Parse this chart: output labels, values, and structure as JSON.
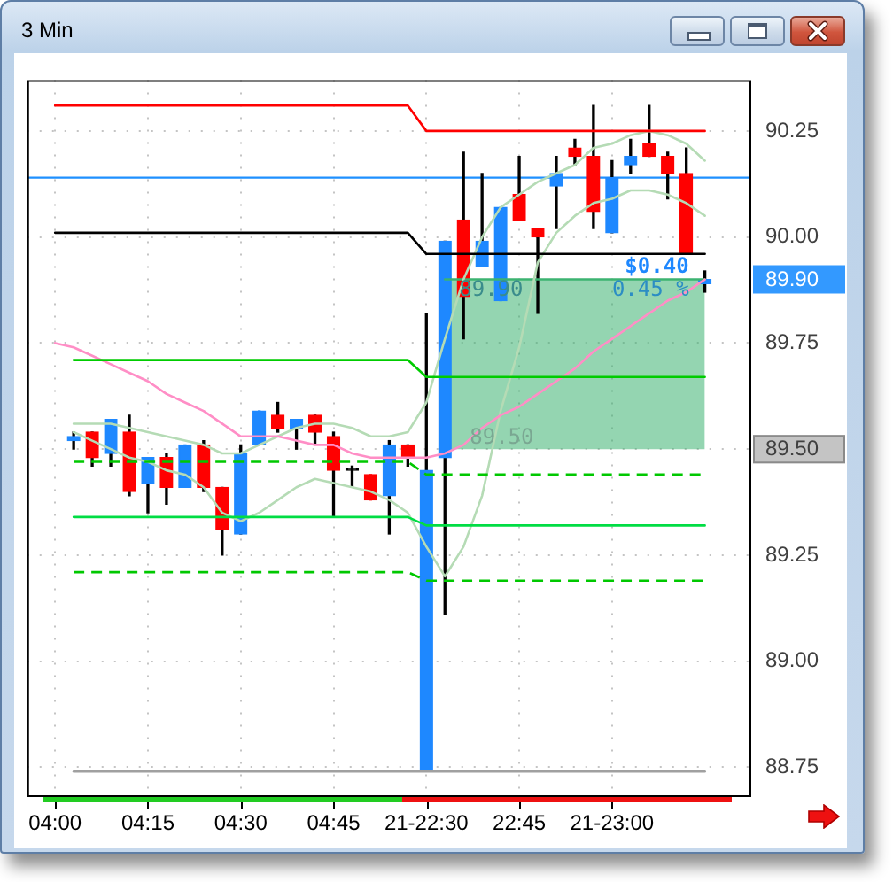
{
  "chart_data": {
    "type": "candlestick",
    "title": "3 Min",
    "categories": [
      "04:00",
      null,
      null,
      null,
      null,
      "04:15",
      null,
      null,
      null,
      null,
      "04:30",
      null,
      null,
      null,
      null,
      "04:45",
      null,
      null,
      null,
      null,
      "21-22:30",
      null,
      null,
      null,
      null,
      "22:45",
      null,
      null,
      null,
      null,
      "21-23:00",
      null,
      null,
      null,
      null,
      null
    ],
    "ohlc": [
      null,
      [
        89.52,
        89.54,
        89.5,
        89.53
      ],
      [
        89.54,
        89.54,
        89.46,
        89.48
      ],
      [
        89.49,
        89.57,
        89.46,
        89.57
      ],
      [
        89.54,
        89.58,
        89.39,
        89.4
      ],
      [
        89.42,
        89.48,
        89.35,
        89.48
      ],
      [
        89.48,
        89.49,
        89.37,
        89.41
      ],
      [
        89.41,
        89.51,
        89.41,
        89.51
      ],
      [
        89.51,
        89.52,
        89.4,
        89.41
      ],
      [
        89.41,
        89.41,
        89.25,
        89.31
      ],
      [
        89.3,
        89.51,
        89.3,
        89.49
      ],
      [
        89.51,
        89.59,
        89.51,
        89.59
      ],
      [
        89.58,
        89.61,
        89.54,
        89.55
      ],
      [
        89.55,
        89.57,
        89.5,
        89.57
      ],
      [
        89.58,
        89.58,
        89.51,
        89.54
      ],
      [
        89.53,
        89.54,
        89.34,
        89.45
      ],
      [
        89.45,
        89.46,
        89.41,
        89.45
      ],
      [
        89.44,
        89.44,
        89.38,
        89.38
      ],
      [
        89.39,
        89.52,
        89.3,
        89.51
      ],
      [
        89.51,
        89.51,
        89.46,
        89.48
      ],
      [
        88.74,
        89.82,
        88.74,
        89.45
      ],
      [
        89.48,
        89.99,
        89.11,
        89.99
      ],
      [
        90.04,
        90.2,
        89.76,
        89.86
      ],
      [
        89.93,
        90.15,
        89.93,
        89.99
      ],
      [
        89.85,
        90.07,
        89.85,
        90.07
      ],
      [
        90.1,
        90.19,
        90.04,
        90.04
      ],
      [
        90.02,
        90.02,
        89.82,
        90.0
      ],
      [
        90.12,
        90.19,
        90.02,
        90.15
      ],
      [
        90.21,
        90.23,
        90.17,
        90.19
      ],
      [
        90.19,
        90.31,
        90.02,
        90.06
      ],
      [
        90.01,
        90.18,
        90.01,
        90.14
      ],
      [
        90.17,
        90.23,
        90.15,
        90.19
      ],
      [
        90.22,
        90.31,
        90.19,
        90.19
      ],
      [
        90.19,
        90.2,
        90.09,
        90.15
      ],
      [
        90.15,
        90.21,
        89.96,
        89.96
      ],
      [
        89.89,
        89.92,
        89.87,
        89.9
      ]
    ],
    "colors": [
      null,
      "#1e88ff",
      "#ff0000",
      "#1e88ff",
      "#ff0000",
      "#1e88ff",
      "#ff0000",
      "#1e88ff",
      "#ff0000",
      "#ff0000",
      "#1e88ff",
      "#1e88ff",
      "#ff0000",
      "#1e88ff",
      "#ff0000",
      "#ff0000",
      "#000000",
      "#ff0000",
      "#1e88ff",
      "#ff0000",
      "#1e88ff",
      "#1e88ff",
      "#ff0000",
      "#1e88ff",
      "#1e88ff",
      "#ff0000",
      "#ff0000",
      "#1e88ff",
      "#ff0000",
      "#ff0000",
      "#1e88ff",
      "#1e88ff",
      "#ff0000",
      "#ff0000",
      "#ff0000",
      "#1e88ff"
    ],
    "series": [
      {
        "type": "line",
        "color": "#ff0000",
        "values": [
          90.31,
          90.31,
          90.31,
          90.31,
          90.31,
          90.31,
          90.31,
          90.31,
          90.31,
          90.31,
          90.31,
          90.31,
          90.31,
          90.31,
          90.31,
          90.31,
          90.31,
          90.31,
          90.31,
          90.31,
          90.25,
          90.25,
          90.25,
          90.25,
          90.25,
          90.25,
          90.25,
          90.25,
          90.25,
          90.25,
          90.25,
          90.25,
          90.25,
          90.25,
          90.25,
          90.25
        ]
      },
      {
        "type": "line",
        "color": "#000000",
        "values": [
          90.01,
          90.01,
          90.01,
          90.01,
          90.01,
          90.01,
          90.01,
          90.01,
          90.01,
          90.01,
          90.01,
          90.01,
          90.01,
          90.01,
          90.01,
          90.01,
          90.01,
          90.01,
          90.01,
          90.01,
          89.96,
          89.96,
          89.96,
          89.96,
          89.96,
          89.96,
          89.96,
          89.96,
          89.96,
          89.96,
          89.96,
          89.96,
          89.96,
          89.96,
          89.96,
          89.96
        ]
      },
      {
        "type": "line",
        "color": "#00cc00",
        "values": [
          null,
          89.71,
          89.71,
          89.71,
          89.71,
          89.71,
          89.71,
          89.71,
          89.71,
          89.71,
          89.71,
          89.71,
          89.71,
          89.71,
          89.71,
          89.71,
          89.71,
          89.71,
          89.71,
          89.71,
          89.67,
          89.67,
          89.67,
          89.67,
          89.67,
          89.67,
          89.67,
          89.67,
          89.67,
          89.67,
          89.67,
          89.67,
          89.67,
          89.67,
          89.67,
          89.67
        ]
      },
      {
        "type": "line",
        "color": "#00dd44",
        "values": [
          null,
          89.34,
          89.34,
          89.34,
          89.34,
          89.34,
          89.34,
          89.34,
          89.34,
          89.34,
          89.34,
          89.34,
          89.34,
          89.34,
          89.34,
          89.34,
          89.34,
          89.34,
          89.34,
          89.34,
          89.32,
          89.32,
          89.32,
          89.32,
          89.32,
          89.32,
          89.32,
          89.32,
          89.32,
          89.32,
          89.32,
          89.32,
          89.32,
          89.32,
          89.32,
          89.32
        ]
      },
      {
        "type": "line",
        "color": "#00c800",
        "line_style": "dashed",
        "values": [
          null,
          89.47,
          89.47,
          89.47,
          89.47,
          89.47,
          89.47,
          89.47,
          89.47,
          89.47,
          89.47,
          89.47,
          89.47,
          89.47,
          89.47,
          89.47,
          89.47,
          89.47,
          89.47,
          89.47,
          89.44,
          89.44,
          89.44,
          89.44,
          89.44,
          89.44,
          89.44,
          89.44,
          89.44,
          89.44,
          89.44,
          89.44,
          89.44,
          89.44,
          89.44,
          89.44
        ]
      },
      {
        "type": "line",
        "color": "#00c800",
        "line_style": "dashed",
        "values": [
          null,
          89.21,
          89.21,
          89.21,
          89.21,
          89.21,
          89.21,
          89.21,
          89.21,
          89.21,
          89.21,
          89.21,
          89.21,
          89.21,
          89.21,
          89.21,
          89.21,
          89.21,
          89.21,
          89.21,
          89.19,
          89.19,
          89.19,
          89.19,
          89.19,
          89.19,
          89.19,
          89.19,
          89.19,
          89.19,
          89.19,
          89.19,
          89.19,
          89.19,
          89.19,
          89.19
        ]
      },
      {
        "type": "line",
        "color": "#a0a0a0",
        "values": [
          null,
          88.74,
          88.74,
          88.74,
          88.74,
          88.74,
          88.74,
          88.74,
          88.74,
          88.74,
          88.74,
          88.74,
          88.74,
          88.74,
          88.74,
          88.74,
          88.74,
          88.74,
          88.74,
          88.74,
          88.74,
          88.74,
          88.74,
          88.74,
          88.74,
          88.74,
          88.74,
          88.74,
          88.74,
          88.74,
          88.74,
          88.74,
          88.74,
          88.74,
          88.74,
          88.74
        ]
      },
      {
        "type": "line",
        "color": "#ff8ec6",
        "values": [
          89.75,
          89.74,
          89.72,
          89.7,
          89.68,
          89.66,
          89.63,
          89.61,
          89.59,
          89.56,
          89.53,
          89.53,
          89.53,
          89.52,
          89.51,
          89.51,
          89.49,
          89.48,
          89.48,
          89.48,
          89.48,
          89.49,
          89.51,
          89.55,
          89.58,
          89.6,
          89.63,
          89.66,
          89.69,
          89.73,
          89.76,
          89.79,
          89.82,
          89.85,
          89.87,
          89.9
        ]
      },
      {
        "type": "line",
        "color": "#b5dbb5",
        "values": [
          null,
          89.56,
          89.56,
          89.56,
          89.55,
          89.54,
          89.53,
          89.52,
          89.51,
          89.49,
          89.49,
          89.51,
          89.53,
          89.55,
          89.56,
          89.56,
          89.55,
          89.53,
          89.53,
          89.54,
          89.61,
          89.76,
          89.9,
          90.0,
          90.07,
          90.1,
          90.13,
          90.15,
          90.17,
          90.21,
          90.22,
          90.24,
          90.25,
          90.24,
          90.22,
          90.18
        ]
      },
      {
        "type": "line",
        "color": "#b5dbb5",
        "values": [
          null,
          89.54,
          89.52,
          89.5,
          89.48,
          89.47,
          89.45,
          89.44,
          89.41,
          89.35,
          89.33,
          89.35,
          89.38,
          89.41,
          89.43,
          89.42,
          89.41,
          89.4,
          89.38,
          89.35,
          89.27,
          89.2,
          89.27,
          89.39,
          89.59,
          89.74,
          89.94,
          90.01,
          90.05,
          90.08,
          90.09,
          90.11,
          90.11,
          90.1,
          90.08,
          90.05
        ]
      },
      {
        "type": "line",
        "color": "#3cb371",
        "values": [
          null,
          null,
          null,
          null,
          null,
          null,
          null,
          null,
          null,
          null,
          null,
          null,
          null,
          null,
          null,
          null,
          null,
          null,
          null,
          null,
          null,
          89.9,
          89.9,
          89.9,
          89.9,
          89.9,
          89.9,
          89.9,
          89.9,
          89.9,
          89.9,
          89.9,
          89.9,
          89.9,
          89.9,
          89.9
        ],
        "lower": [
          null,
          null,
          null,
          null,
          null,
          null,
          null,
          null,
          null,
          null,
          null,
          null,
          null,
          null,
          null,
          null,
          null,
          null,
          null,
          null,
          null,
          89.5,
          89.5,
          89.5,
          89.5,
          89.5,
          89.5,
          89.5,
          89.5,
          89.5,
          89.5,
          89.5,
          89.5,
          89.5,
          89.5,
          89.5
        ],
        "upper": [
          null,
          null,
          null,
          null,
          null,
          null,
          null,
          null,
          null,
          null,
          null,
          null,
          null,
          null,
          null,
          null,
          null,
          null,
          null,
          null,
          null,
          89.9,
          89.9,
          89.9,
          89.9,
          89.9,
          89.9,
          89.9,
          89.9,
          89.9,
          89.9,
          89.9,
          89.9,
          89.9,
          89.9,
          89.9
        ]
      }
    ],
    "ref_lines": [
      {
        "axis": "y",
        "value": 90.14,
        "color": "#1e90ff"
      }
    ],
    "annotations": [
      "89.90",
      {
        "text": "$0.40",
        "y": 89.9
      },
      "89.90",
      {
        "text": "0.45 %",
        "y": 89.9
      },
      {
        "text": "89.50",
        "y": 89.5
      }
    ],
    "ylim": [
      88.68,
      90.37
    ],
    "yticks": [
      88.75,
      {
        "value": 89,
        "label": "89.00"
      },
      89.25,
      {
        "value": 89.5,
        "label": "89.50"
      },
      89.75,
      {
        "value": 90,
        "label": "90.00"
      },
      90.25
    ],
    "grid": true
  }
}
